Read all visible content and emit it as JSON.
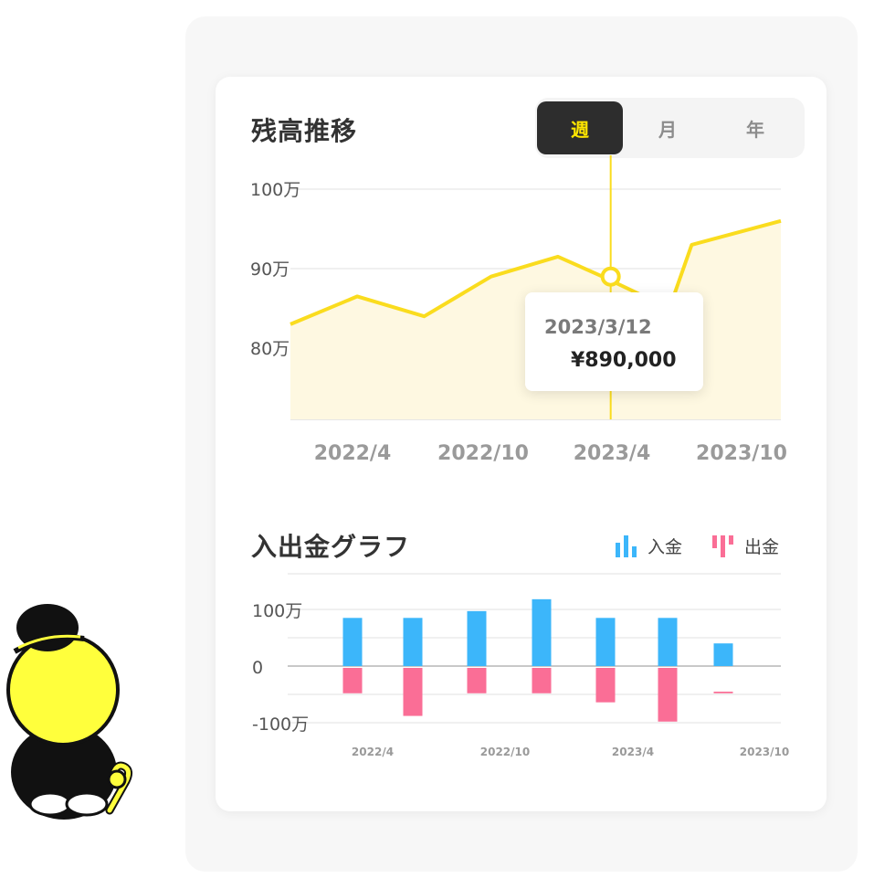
{
  "balance_section": {
    "title": "残高推移",
    "period_tabs": [
      {
        "label": "週",
        "active": true
      },
      {
        "label": "月",
        "active": false
      },
      {
        "label": "年",
        "active": false
      }
    ],
    "tooltip": {
      "date": "2023/3/12",
      "value": "¥890,000"
    }
  },
  "flow_section": {
    "title": "入出金グラフ",
    "legend": [
      {
        "label": "入金",
        "color": "#3cb6fa",
        "icon": "deposit-bars-icon"
      },
      {
        "label": "出金",
        "color": "#fa6e96",
        "icon": "withdrawal-bars-icon"
      }
    ]
  },
  "chart_data": [
    {
      "type": "area",
      "title": "残高推移",
      "y_unit": "万",
      "x_ticks": [
        "2022/4",
        "2022/10",
        "2023/4",
        "2023/10"
      ],
      "y_ticks": [
        "100万",
        "90万",
        "80万"
      ],
      "x": [
        "2022/1",
        "2022/4",
        "2022/7",
        "2022/10",
        "2023/1",
        "2023/3",
        "2023/6",
        "2023/7",
        "2023/11"
      ],
      "values": [
        83,
        86.5,
        84,
        89,
        91.5,
        89,
        85,
        93,
        96
      ],
      "ylim": [
        71,
        100
      ],
      "highlight": {
        "x": "2023/3/12",
        "value": 890000,
        "label": "¥890,000"
      },
      "color": "#fadc1e",
      "fill": "#fef8e1",
      "grid": true
    },
    {
      "type": "bar",
      "title": "入出金グラフ",
      "y_unit": "万",
      "x_ticks": [
        "2022/4",
        "2022/10",
        "2023/4",
        "2023/10"
      ],
      "y_ticks": [
        "100万",
        "0",
        "-100万"
      ],
      "ylim": [
        -120,
        150
      ],
      "series": [
        {
          "name": "入金",
          "values": [
            85,
            85,
            97,
            118,
            85,
            85,
            40
          ],
          "color": "#3cb6fa"
        },
        {
          "name": "出金",
          "values": [
            -48,
            -88,
            -48,
            -48,
            -64,
            -98,
            -48
          ],
          "color": "#fa6e96"
        }
      ],
      "grid": true
    }
  ]
}
